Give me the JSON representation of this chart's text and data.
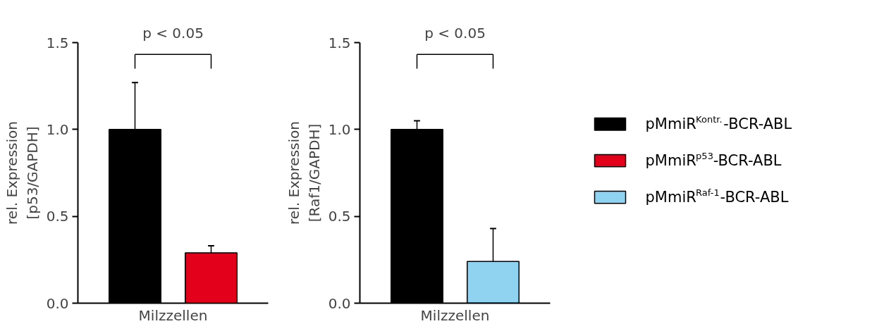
{
  "chart_data": [
    {
      "type": "bar",
      "categories": [
        null
      ],
      "xlabel": "Milzzellen",
      "ylabel": "rel. Expression\n[p53/GAPDH]",
      "ylim": [
        0,
        1.5
      ],
      "yticks": [
        {
          "value": 0,
          "label": "0.0"
        },
        {
          "value": 0.5,
          "label": "0.5"
        },
        {
          "value": 1,
          "label": "1.0"
        },
        {
          "value": 1.5,
          "label": "1.5"
        }
      ],
      "grid": false,
      "legend": "right",
      "annotations": [
        "p < 0.05"
      ],
      "series": [
        {
          "name": "pMmiR$^{Kontr.}$-BCR-ABL",
          "color": "#000000",
          "values": [
            1.0
          ],
          "errors": [
            [
              1.0,
              1.27
            ]
          ]
        },
        {
          "name": "pMmiR$^{p53}$-BCR-ABL",
          "color": "#e2001a",
          "values": [
            0.29
          ],
          "errors": [
            [
              0.29,
              0.33
            ]
          ]
        }
      ]
    },
    {
      "type": "bar",
      "categories": [
        null
      ],
      "xlabel": "Milzzellen",
      "ylabel": "rel. Expression\n[Raf1/GAPDH]",
      "ylim": [
        0,
        1.5
      ],
      "yticks": [
        {
          "value": 0,
          "label": "0.0"
        },
        {
          "value": 0.5,
          "label": "0.5"
        },
        {
          "value": 1,
          "label": "1.0"
        },
        {
          "value": 1.5,
          "label": "1.5"
        }
      ],
      "grid": false,
      "legend": "right",
      "annotations": [
        "p < 0.05"
      ],
      "series": [
        {
          "name": "pMmiR$^{Kontr.}$-BCR-ABL",
          "color": "#000000",
          "values": [
            1.0
          ],
          "errors": [
            [
              1.0,
              1.05
            ]
          ]
        },
        {
          "name": "pMmiR$^{Raf-1}$-BCR-ABL",
          "color": "#8fd3f0",
          "values": [
            0.24
          ],
          "errors": [
            [
              0.24,
              0.43
            ]
          ]
        }
      ]
    }
  ]
}
